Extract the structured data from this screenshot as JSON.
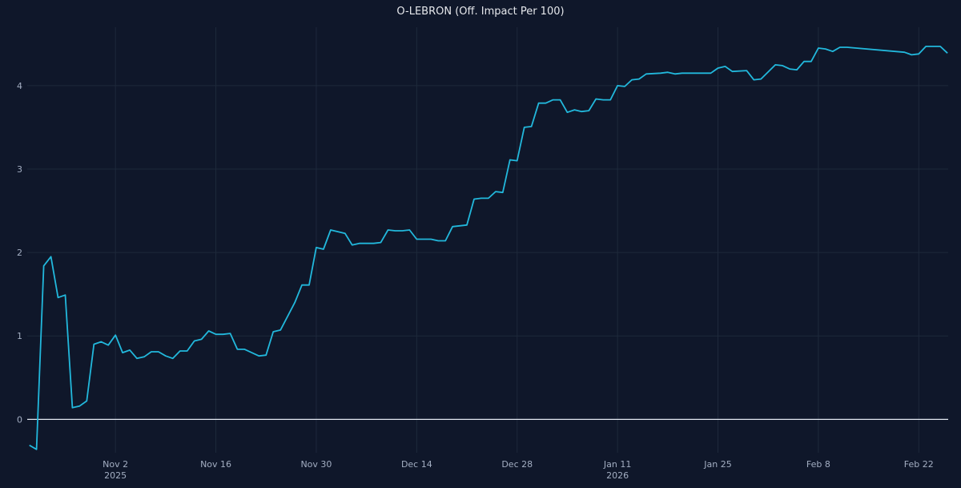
{
  "chart_data": {
    "type": "line",
    "title": "O-LEBRON (Off. Impact Per 100)",
    "xlabel": "",
    "ylabel": "",
    "grid": true,
    "legend": "none",
    "zero_line": true,
    "x_range": [
      "2025-10-21",
      "2026-02-26"
    ],
    "ylim": [
      -0.4,
      4.7
    ],
    "y_ticks": [
      {
        "value": 0,
        "label": "0"
      },
      {
        "value": 1,
        "label": "1"
      },
      {
        "value": 2,
        "label": "2"
      },
      {
        "value": 3,
        "label": "3"
      },
      {
        "value": 4,
        "label": "4"
      }
    ],
    "x_ticks": [
      {
        "date": "2025-11-02",
        "label": "Nov 2",
        "sublabel": "2025"
      },
      {
        "date": "2025-11-16",
        "label": "Nov 16",
        "sublabel": ""
      },
      {
        "date": "2025-11-30",
        "label": "Nov 30",
        "sublabel": ""
      },
      {
        "date": "2025-12-14",
        "label": "Dec 14",
        "sublabel": ""
      },
      {
        "date": "2025-12-28",
        "label": "Dec 28",
        "sublabel": ""
      },
      {
        "date": "2026-01-11",
        "label": "Jan 11",
        "sublabel": "2026"
      },
      {
        "date": "2026-01-25",
        "label": "Jan 25",
        "sublabel": ""
      },
      {
        "date": "2026-02-08",
        "label": "Feb 8",
        "sublabel": ""
      },
      {
        "date": "2026-02-22",
        "label": "Feb 22",
        "sublabel": ""
      }
    ],
    "colors": {
      "background": "#0f172a",
      "line": "#22b8dc",
      "grid": "#1e293b",
      "zero_line": "#e2e8f0",
      "text": "#a3aec2",
      "title": "#e5e7eb"
    },
    "series": [
      {
        "points": [
          [
            "2025-10-21",
            -0.31
          ],
          [
            "2025-10-22",
            -0.36
          ],
          [
            "2025-10-23",
            1.84
          ],
          [
            "2025-10-24",
            1.95
          ],
          [
            "2025-10-25",
            1.46
          ],
          [
            "2025-10-26",
            1.49
          ],
          [
            "2025-10-27",
            0.14
          ],
          [
            "2025-10-28",
            0.16
          ],
          [
            "2025-10-29",
            0.22
          ],
          [
            "2025-10-30",
            0.9
          ],
          [
            "2025-10-31",
            0.93
          ],
          [
            "2025-11-01",
            0.89
          ],
          [
            "2025-11-02",
            1.01
          ],
          [
            "2025-11-03",
            0.8
          ],
          [
            "2025-11-04",
            0.83
          ],
          [
            "2025-11-05",
            0.73
          ],
          [
            "2025-11-06",
            0.75
          ],
          [
            "2025-11-07",
            0.81
          ],
          [
            "2025-11-08",
            0.81
          ],
          [
            "2025-11-09",
            0.76
          ],
          [
            "2025-11-10",
            0.73
          ],
          [
            "2025-11-11",
            0.82
          ],
          [
            "2025-11-12",
            0.82
          ],
          [
            "2025-11-13",
            0.94
          ],
          [
            "2025-11-14",
            0.96
          ],
          [
            "2025-11-15",
            1.06
          ],
          [
            "2025-11-16",
            1.02
          ],
          [
            "2025-11-17",
            1.02
          ],
          [
            "2025-11-18",
            1.03
          ],
          [
            "2025-11-19",
            0.84
          ],
          [
            "2025-11-20",
            0.84
          ],
          [
            "2025-11-22",
            0.76
          ],
          [
            "2025-11-23",
            0.77
          ],
          [
            "2025-11-24",
            1.05
          ],
          [
            "2025-11-25",
            1.07
          ],
          [
            "2025-11-27",
            1.4
          ],
          [
            "2025-11-28",
            1.61
          ],
          [
            "2025-11-29",
            1.61
          ],
          [
            "2025-11-30",
            2.06
          ],
          [
            "2025-12-01",
            2.04
          ],
          [
            "2025-12-02",
            2.27
          ],
          [
            "2025-12-04",
            2.23
          ],
          [
            "2025-12-05",
            2.09
          ],
          [
            "2025-12-06",
            2.11
          ],
          [
            "2025-12-08",
            2.11
          ],
          [
            "2025-12-09",
            2.12
          ],
          [
            "2025-12-10",
            2.27
          ],
          [
            "2025-12-11",
            2.26
          ],
          [
            "2025-12-12",
            2.26
          ],
          [
            "2025-12-13",
            2.27
          ],
          [
            "2025-12-14",
            2.16
          ],
          [
            "2025-12-15",
            2.16
          ],
          [
            "2025-12-16",
            2.16
          ],
          [
            "2025-12-17",
            2.14
          ],
          [
            "2025-12-18",
            2.14
          ],
          [
            "2025-12-19",
            2.31
          ],
          [
            "2025-12-20",
            2.32
          ],
          [
            "2025-12-21",
            2.33
          ],
          [
            "2025-12-22",
            2.64
          ],
          [
            "2025-12-23",
            2.65
          ],
          [
            "2025-12-24",
            2.65
          ],
          [
            "2025-12-25",
            2.73
          ],
          [
            "2025-12-26",
            2.72
          ],
          [
            "2025-12-27",
            3.11
          ],
          [
            "2025-12-28",
            3.1
          ],
          [
            "2025-12-29",
            3.5
          ],
          [
            "2025-12-30",
            3.51
          ],
          [
            "2025-12-31",
            3.79
          ],
          [
            "2026-01-01",
            3.79
          ],
          [
            "2026-01-02",
            3.83
          ],
          [
            "2026-01-03",
            3.83
          ],
          [
            "2026-01-04",
            3.68
          ],
          [
            "2026-01-05",
            3.71
          ],
          [
            "2026-01-06",
            3.69
          ],
          [
            "2026-01-07",
            3.7
          ],
          [
            "2026-01-08",
            3.84
          ],
          [
            "2026-01-09",
            3.83
          ],
          [
            "2026-01-10",
            3.83
          ],
          [
            "2026-01-11",
            4.0
          ],
          [
            "2026-01-12",
            3.99
          ],
          [
            "2026-01-13",
            4.07
          ],
          [
            "2026-01-14",
            4.08
          ],
          [
            "2026-01-15",
            4.14
          ],
          [
            "2026-01-17",
            4.15
          ],
          [
            "2026-01-18",
            4.16
          ],
          [
            "2026-01-19",
            4.14
          ],
          [
            "2026-01-20",
            4.15
          ],
          [
            "2026-01-21",
            4.15
          ],
          [
            "2026-01-23",
            4.15
          ],
          [
            "2026-01-24",
            4.15
          ],
          [
            "2026-01-25",
            4.21
          ],
          [
            "2026-01-26",
            4.23
          ],
          [
            "2026-01-27",
            4.17
          ],
          [
            "2026-01-29",
            4.18
          ],
          [
            "2026-01-30",
            4.07
          ],
          [
            "2026-01-31",
            4.08
          ],
          [
            "2026-02-02",
            4.25
          ],
          [
            "2026-02-03",
            4.24
          ],
          [
            "2026-02-04",
            4.2
          ],
          [
            "2026-02-05",
            4.19
          ],
          [
            "2026-02-06",
            4.29
          ],
          [
            "2026-02-07",
            4.29
          ],
          [
            "2026-02-08",
            4.45
          ],
          [
            "2026-02-09",
            4.44
          ],
          [
            "2026-02-10",
            4.41
          ],
          [
            "2026-02-11",
            4.46
          ],
          [
            "2026-02-12",
            4.46
          ],
          [
            "2026-02-20",
            4.4
          ],
          [
            "2026-02-21",
            4.37
          ],
          [
            "2026-02-22",
            4.38
          ],
          [
            "2026-02-23",
            4.47
          ],
          [
            "2026-02-25",
            4.47
          ],
          [
            "2026-02-26",
            4.39
          ]
        ]
      }
    ]
  }
}
